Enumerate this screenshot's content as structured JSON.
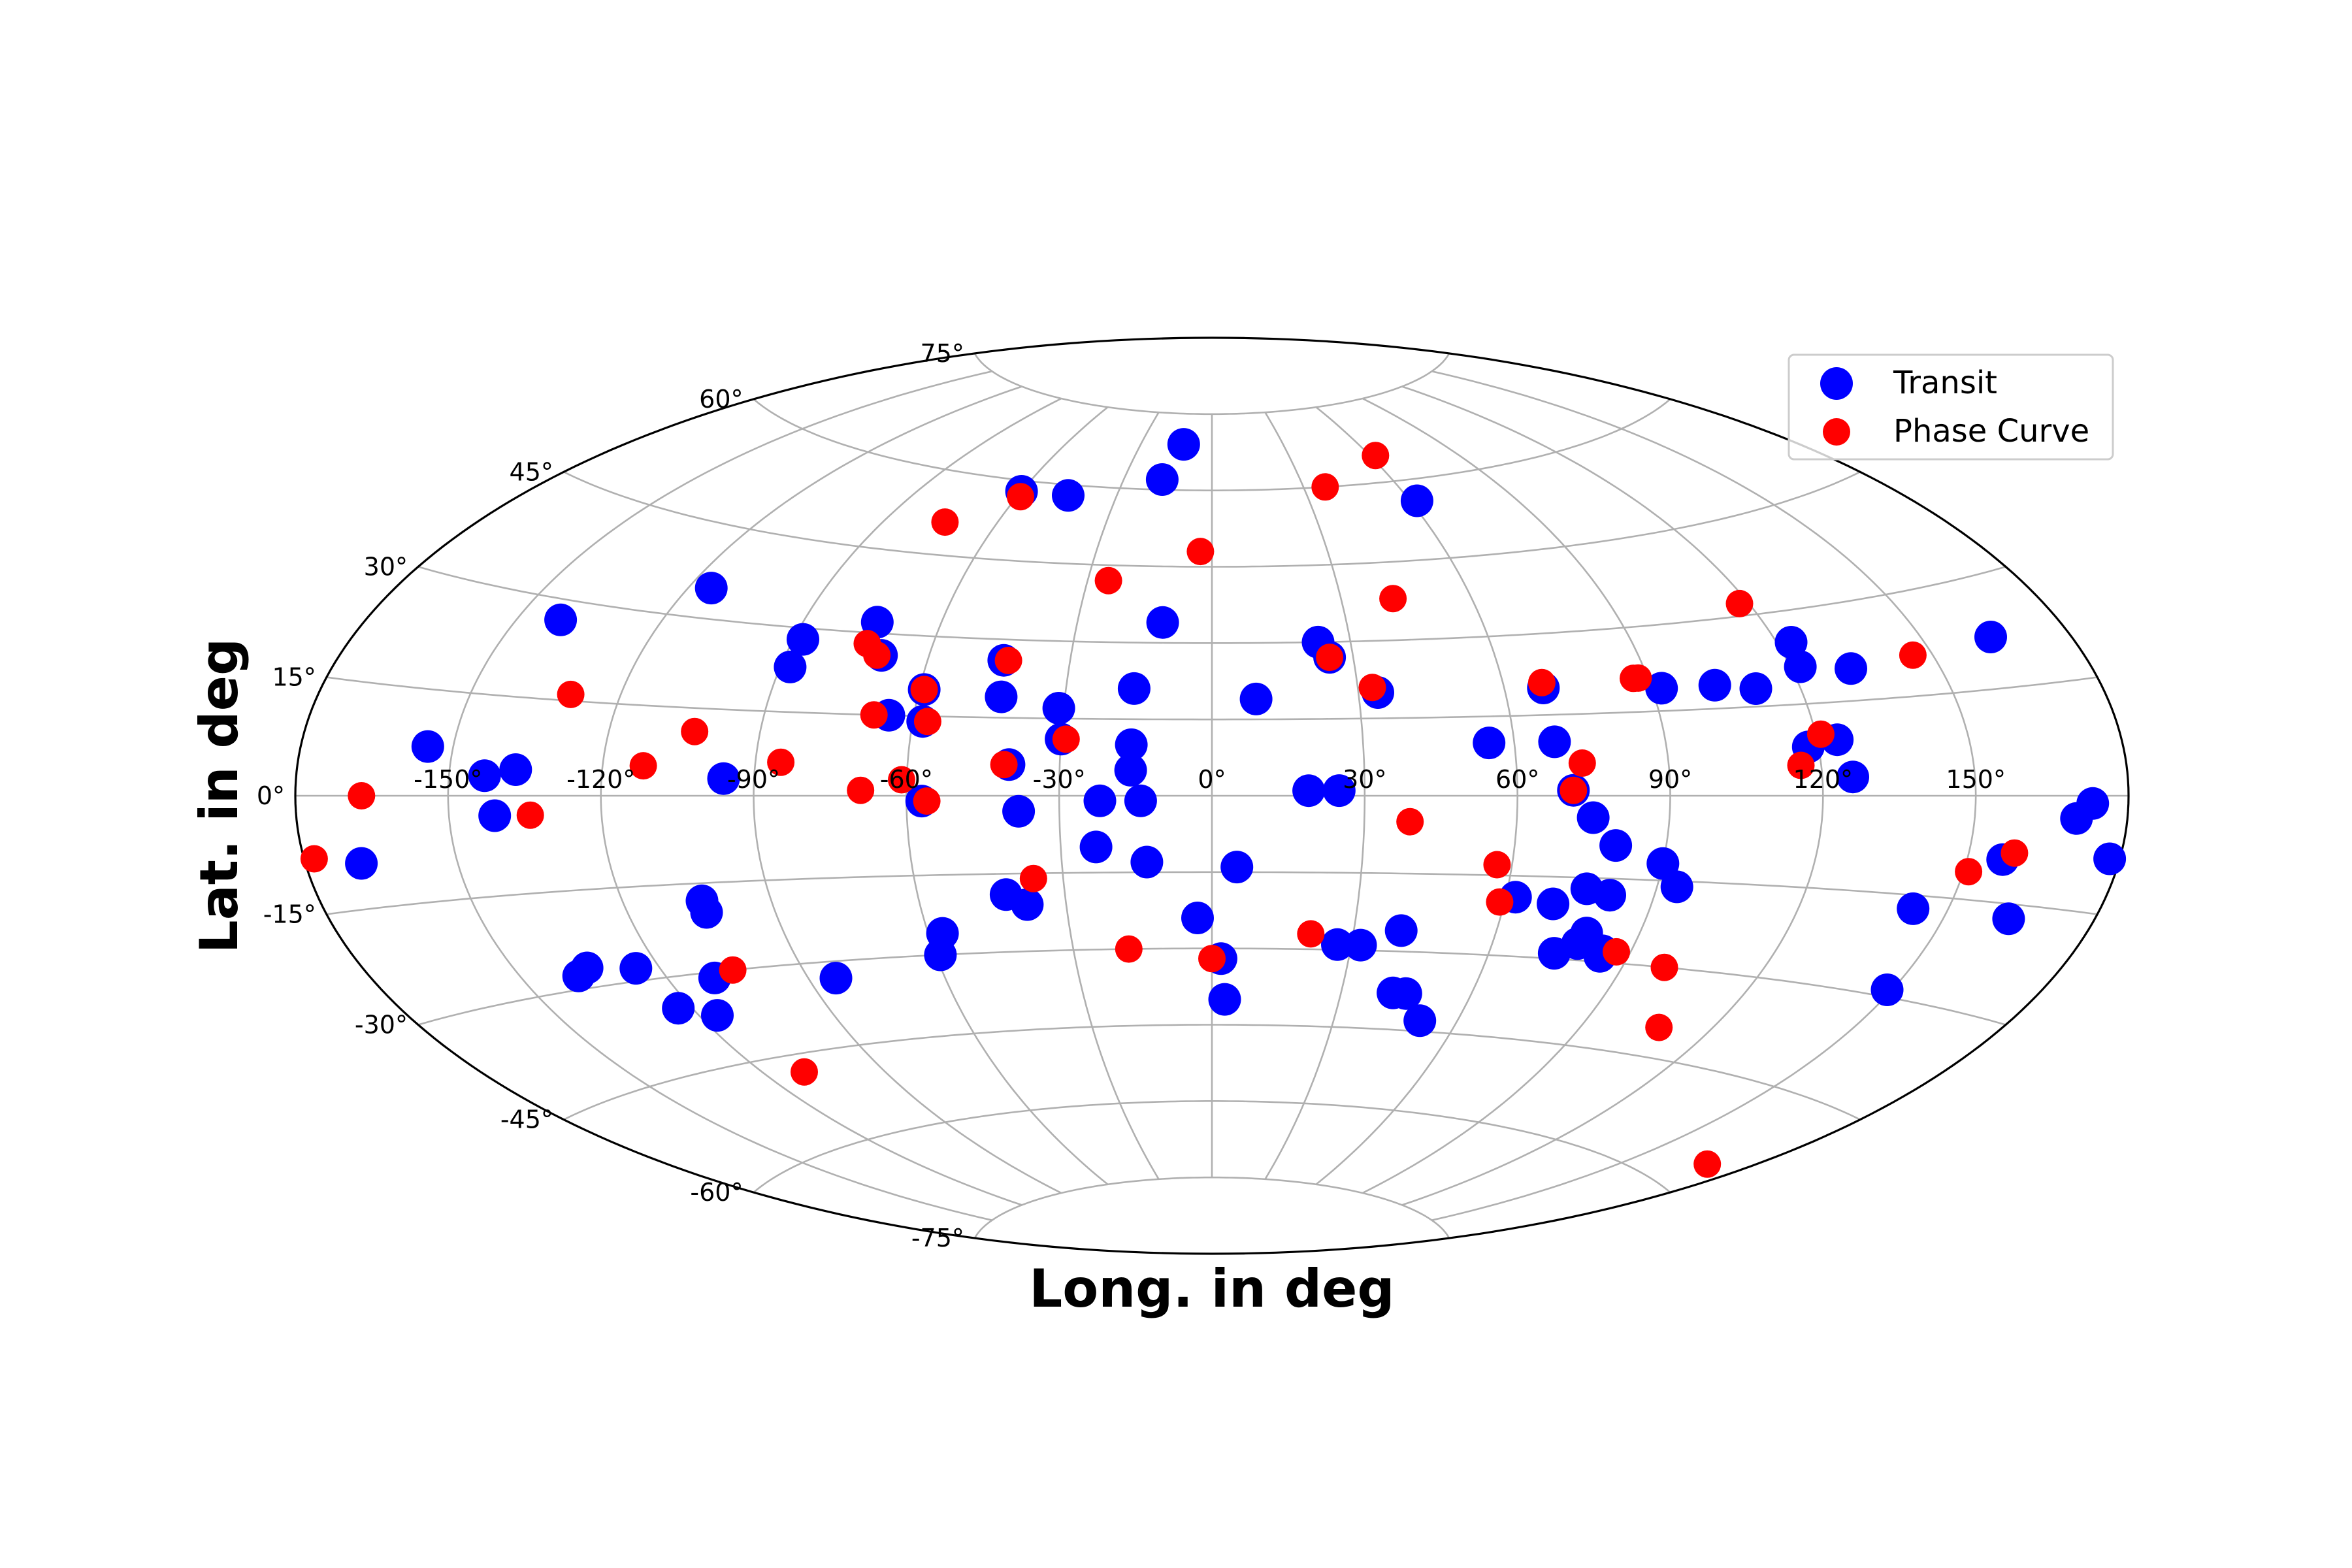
{
  "chart_data": {
    "type": "scatter",
    "projection": "aitoff",
    "xlabel": "Long. in deg",
    "ylabel": "Lat. in deg",
    "xlim": [
      -180,
      180
    ],
    "ylim": [
      -90,
      90
    ],
    "grid": true,
    "legend_position": "top-right",
    "x_ticks": [
      "-150°",
      "-120°",
      "-90°",
      "-60°",
      "-30°",
      "0°",
      "30°",
      "60°",
      "90°",
      "120°",
      "150°"
    ],
    "y_ticks": [
      "-75°",
      "-60°",
      "-45°",
      "-30°",
      "-15°",
      "0°",
      "15°",
      "30°",
      "45°",
      "60°",
      "75°"
    ],
    "series": [
      {
        "name": "Transit",
        "color": "#0000ff",
        "points": [
          [
            -169,
            -9
          ],
          [
            -155,
            7
          ],
          [
            -143,
            3
          ],
          [
            -137,
            4
          ],
          [
            -141,
            -3
          ],
          [
            -141,
            27
          ],
          [
            -135,
            -27
          ],
          [
            -138,
            -28
          ],
          [
            -125,
            -28
          ],
          [
            -123,
            -35
          ],
          [
            -110,
            -31
          ],
          [
            -116,
            -37
          ],
          [
            -115,
            35
          ],
          [
            -104,
            -18
          ],
          [
            -104,
            -20
          ],
          [
            -96,
            3
          ],
          [
            -88,
            28
          ],
          [
            -88,
            23
          ],
          [
            -84,
            -33
          ],
          [
            -70,
            26
          ],
          [
            -74,
            32
          ],
          [
            -60,
            58
          ],
          [
            -65,
            15
          ],
          [
            -57,
            -26
          ],
          [
            -59,
            -30
          ],
          [
            -59,
            20
          ],
          [
            -58,
            14
          ],
          [
            -57,
            -1
          ],
          [
            -45,
            58
          ],
          [
            -43,
            19
          ],
          [
            -40,
            6
          ],
          [
            -44,
            26
          ],
          [
            -42,
            -19
          ],
          [
            -38,
            -21
          ],
          [
            -38,
            -3
          ],
          [
            -31,
            17
          ],
          [
            -30,
            11
          ],
          [
            -22,
            -1
          ],
          [
            -23,
            -10
          ],
          [
            -16,
            21
          ],
          [
            -16,
            10
          ],
          [
            -16,
            5
          ],
          [
            -14,
            -1
          ],
          [
            -13,
            -13
          ],
          [
            -17,
            62
          ],
          [
            -12,
            69
          ],
          [
            -11,
            34
          ],
          [
            -3,
            -24
          ],
          [
            5,
            -14
          ],
          [
            2,
            -32
          ],
          [
            3,
            -40
          ],
          [
            9,
            19
          ],
          [
            19,
            1
          ],
          [
            23,
            30
          ],
          [
            25,
            1
          ],
          [
            25,
            27
          ],
          [
            34,
            20
          ],
          [
            27,
            -29
          ],
          [
            32,
            -29
          ],
          [
            40,
            -26
          ],
          [
            42,
            -38
          ],
          [
            45,
            -38
          ],
          [
            51,
            -43
          ],
          [
            62,
            56
          ],
          [
            55,
            10
          ],
          [
            62,
            -19
          ],
          [
            68,
            20
          ],
          [
            68,
            10
          ],
          [
            71,
            1
          ],
          [
            70,
            -20
          ],
          [
            75,
            -4
          ],
          [
            78,
            -27
          ],
          [
            80,
            -9
          ],
          [
            81,
            -18
          ],
          [
            76,
            -17
          ],
          [
            79,
            -25
          ],
          [
            84,
            -29
          ],
          [
            84,
            -28
          ],
          [
            74,
            -29
          ],
          [
            90,
            -12
          ],
          [
            94,
            -16
          ],
          [
            92,
            19
          ],
          [
            103,
            19
          ],
          [
            111,
            18
          ],
          [
            118,
            8
          ],
          [
            122,
            21
          ],
          [
            123,
            25
          ],
          [
            124,
            9
          ],
          [
            126,
            3
          ],
          [
            132,
            20
          ],
          [
            143,
            -17
          ],
          [
            149,
            -29
          ],
          [
            157,
            -9
          ],
          [
            163,
            -17
          ],
          [
            164,
            22
          ],
          [
            170,
            -3
          ],
          [
            173,
            -1
          ],
          [
            178,
            -8
          ]
        ]
      },
      {
        "name": "Phase Curve",
        "color": "#ff0000",
        "points": [
          [
            -178,
            -8
          ],
          [
            -167,
            0
          ],
          [
            -130,
            16
          ],
          [
            -134,
            -3
          ],
          [
            -112,
            5
          ],
          [
            -103,
            11
          ],
          [
            -105,
            -30
          ],
          [
            -110,
            -48
          ],
          [
            -85,
            6
          ],
          [
            -74,
            51
          ],
          [
            -74,
            28
          ],
          [
            -71,
            26
          ],
          [
            -68,
            15
          ],
          [
            -69,
            1
          ],
          [
            -61,
            3
          ],
          [
            -59,
            57
          ],
          [
            -59,
            20
          ],
          [
            -57,
            14
          ],
          [
            -56,
            -1
          ],
          [
            -43,
            26
          ],
          [
            -41,
            6
          ],
          [
            -36,
            -16
          ],
          [
            -25,
            42
          ],
          [
            -29,
            11
          ],
          [
            -18,
            -30
          ],
          [
            -3,
            48
          ],
          [
            0,
            -32
          ],
          [
            21,
            -27
          ],
          [
            25,
            27
          ],
          [
            33,
            21
          ],
          [
            37,
            60
          ],
          [
            42,
            38
          ],
          [
            39,
            -5
          ],
          [
            62,
            65
          ],
          [
            57,
            -13
          ],
          [
            59,
            -20
          ],
          [
            68,
            21
          ],
          [
            71,
            1
          ],
          [
            73,
            6
          ],
          [
            87,
            21
          ],
          [
            88,
            21
          ],
          [
            87,
            -28
          ],
          [
            99,
            -30
          ],
          [
            108,
            -40
          ],
          [
            116,
            5
          ],
          [
            118,
            32
          ],
          [
            121,
            10
          ],
          [
            146,
            21
          ],
          [
            151,
            -11
          ],
          [
            159,
            -8
          ],
          [
            170,
            -56
          ]
        ]
      }
    ]
  }
}
